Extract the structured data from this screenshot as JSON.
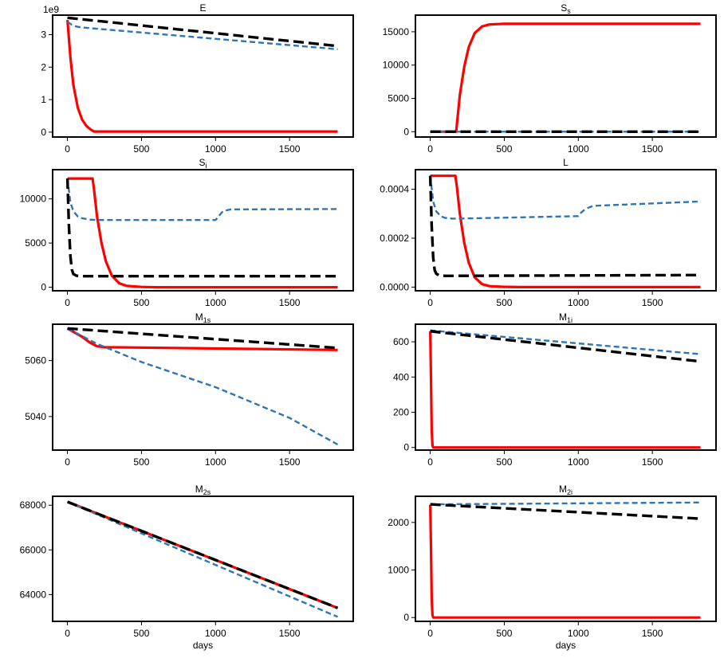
{
  "figure": {
    "xlabel": "days"
  },
  "colors": {
    "red": "#ff0000",
    "blue": "#2e75b6",
    "black": "#000000"
  },
  "chart_data": [
    {
      "type": "line",
      "title": "E",
      "title_main": "E",
      "title_sub": "",
      "offset_label": "1e9",
      "xlim": [
        -100,
        1930
      ],
      "ylim": [
        -0.15,
        3.6
      ],
      "xticks": [
        0,
        500,
        1000,
        1500
      ],
      "yticks": [
        0,
        1,
        2,
        3
      ],
      "ytick_labels": [
        "0",
        "1",
        "2",
        "3"
      ],
      "xlabel": "",
      "series": [
        {
          "name": "red-solid",
          "color": "#ff0000",
          "style": "solid",
          "x": [
            0,
            20,
            40,
            70,
            100,
            130,
            160,
            180,
            1825
          ],
          "y": [
            3.45,
            2.3,
            1.45,
            0.75,
            0.38,
            0.18,
            0.07,
            0.02,
            0.02
          ]
        },
        {
          "name": "blue-dashed",
          "color": "#2e75b6",
          "style": "dashed",
          "x": [
            0,
            30,
            60,
            100,
            1825
          ],
          "y": [
            3.4,
            3.3,
            3.25,
            3.22,
            2.55
          ]
        },
        {
          "name": "black-dashed",
          "color": "#000000",
          "style": "longdash",
          "x": [
            0,
            1825
          ],
          "y": [
            3.52,
            2.65
          ]
        }
      ]
    },
    {
      "type": "line",
      "title": "Ss",
      "title_main": "S",
      "title_sub": "s",
      "offset_label": "",
      "xlim": [
        -100,
        1930
      ],
      "ylim": [
        -800,
        17500
      ],
      "xticks": [
        0,
        500,
        1000,
        1500
      ],
      "yticks": [
        0,
        5000,
        10000,
        15000
      ],
      "ytick_labels": [
        "0",
        "5000",
        "10000",
        "15000"
      ],
      "xlabel": "",
      "series": [
        {
          "name": "red-solid",
          "color": "#ff0000",
          "style": "solid",
          "x": [
            0,
            170,
            175,
            200,
            230,
            260,
            300,
            350,
            400,
            500,
            1825
          ],
          "y": [
            0,
            0,
            0,
            5500,
            9800,
            12700,
            14800,
            15800,
            16100,
            16200,
            16200
          ]
        },
        {
          "name": "blue-dashed",
          "color": "#2e75b6",
          "style": "dashed",
          "x": [
            0,
            1825
          ],
          "y": [
            0,
            0
          ]
        },
        {
          "name": "black-dashed",
          "color": "#000000",
          "style": "longdash",
          "x": [
            0,
            1825
          ],
          "y": [
            0,
            0
          ]
        }
      ]
    },
    {
      "type": "line",
      "title": "Si",
      "title_main": "S",
      "title_sub": "i",
      "offset_label": "",
      "xlim": [
        -100,
        1930
      ],
      "ylim": [
        -400,
        13300
      ],
      "xticks": [
        0,
        500,
        1000,
        1500
      ],
      "yticks": [
        0,
        5000,
        10000
      ],
      "ytick_labels": [
        "0",
        "5000",
        "10000"
      ],
      "xlabel": "",
      "series": [
        {
          "name": "red-solid",
          "color": "#ff0000",
          "style": "solid",
          "x": [
            0,
            170,
            180,
            200,
            230,
            260,
            300,
            350,
            400,
            500,
            600,
            1825
          ],
          "y": [
            12300,
            12300,
            11000,
            8000,
            5000,
            2900,
            1300,
            450,
            150,
            30,
            0,
            0
          ]
        },
        {
          "name": "blue-dashed",
          "color": "#2e75b6",
          "style": "dashed",
          "x": [
            0,
            20,
            40,
            70,
            100,
            150,
            200,
            1000,
            1020,
            1050,
            1100,
            1825
          ],
          "y": [
            12300,
            9600,
            8600,
            8000,
            7800,
            7650,
            7600,
            7600,
            8000,
            8600,
            8800,
            8850
          ]
        },
        {
          "name": "black-dashed",
          "color": "#000000",
          "style": "longdash",
          "x": [
            0,
            10,
            20,
            30,
            40,
            60,
            100,
            1825
          ],
          "y": [
            12300,
            7000,
            3500,
            2000,
            1500,
            1300,
            1250,
            1250
          ]
        }
      ]
    },
    {
      "type": "line",
      "title": "L",
      "title_main": "L",
      "title_sub": "",
      "offset_label": "",
      "xlim": [
        -100,
        1930
      ],
      "ylim": [
        -1.5e-05,
        0.00048
      ],
      "xticks": [
        0,
        500,
        1000,
        1500
      ],
      "yticks": [
        0,
        0.0002,
        0.0004
      ],
      "ytick_labels": [
        "0.0000",
        "0.0002",
        "0.0004"
      ],
      "xlabel": "",
      "series": [
        {
          "name": "red-solid",
          "color": "#ff0000",
          "style": "solid",
          "x": [
            0,
            170,
            180,
            200,
            230,
            260,
            300,
            350,
            400,
            500,
            600,
            1825
          ],
          "y": [
            0.000455,
            0.000455,
            0.00041,
            0.0003,
            0.00018,
            0.0001,
            4e-05,
            1.2e-05,
            4e-06,
            1e-06,
            0,
            0
          ]
        },
        {
          "name": "blue-dashed",
          "color": "#2e75b6",
          "style": "dashed",
          "x": [
            0,
            20,
            40,
            70,
            100,
            150,
            200,
            1000,
            1020,
            1050,
            1100,
            1825
          ],
          "y": [
            0.000455,
            0.00035,
            0.00031,
            0.00029,
            0.000283,
            0.00028,
            0.00028,
            0.00029,
            0.000305,
            0.00032,
            0.000332,
            0.00035
          ]
        },
        {
          "name": "black-dashed",
          "color": "#000000",
          "style": "longdash",
          "x": [
            0,
            10,
            20,
            30,
            40,
            60,
            100,
            1825
          ],
          "y": [
            0.000455,
            0.00025,
            0.00012,
            7e-05,
            5.5e-05,
            4.8e-05,
            4.6e-05,
            4.9e-05
          ]
        }
      ]
    },
    {
      "type": "line",
      "title": "M1s",
      "title_main": "M",
      "title_sub": "1s",
      "offset_label": "",
      "xlim": [
        -100,
        1930
      ],
      "ylim": [
        5028,
        5073
      ],
      "xticks": [
        0,
        500,
        1000,
        1500
      ],
      "yticks": [
        5040,
        5060
      ],
      "ytick_labels": [
        "5040",
        "5060"
      ],
      "xlabel": "",
      "series": [
        {
          "name": "red-solid",
          "color": "#ff0000",
          "style": "solid",
          "x": [
            0,
            100,
            150,
            200,
            250,
            1825
          ],
          "y": [
            5071.5,
            5068.5,
            5066.5,
            5065.1,
            5064.8,
            5063.8
          ]
        },
        {
          "name": "blue-dashed",
          "color": "#2e75b6",
          "style": "dashed",
          "x": [
            0,
            200,
            500,
            1000,
            1500,
            1825
          ],
          "y": [
            5071.5,
            5066,
            5059.5,
            5050.5,
            5039.5,
            5030
          ]
        },
        {
          "name": "black-dashed",
          "color": "#000000",
          "style": "longdash",
          "x": [
            0,
            1825
          ],
          "y": [
            5071.5,
            5064.5
          ]
        }
      ]
    },
    {
      "type": "line",
      "title": "M1i",
      "title_main": "M",
      "title_sub": "1i",
      "offset_label": "",
      "xlim": [
        -100,
        1930
      ],
      "ylim": [
        -15,
        700
      ],
      "xticks": [
        0,
        500,
        1000,
        1500
      ],
      "yticks": [
        0,
        200,
        400,
        600
      ],
      "ytick_labels": [
        "0",
        "200",
        "400",
        "600"
      ],
      "xlabel": "",
      "series": [
        {
          "name": "red-solid",
          "color": "#ff0000",
          "style": "solid",
          "x": [
            0,
            5,
            10,
            15,
            20,
            1825
          ],
          "y": [
            660,
            400,
            100,
            10,
            0,
            0
          ]
        },
        {
          "name": "blue-dashed",
          "color": "#2e75b6",
          "style": "dashed",
          "x": [
            0,
            1825
          ],
          "y": [
            665,
            530
          ]
        },
        {
          "name": "black-dashed",
          "color": "#000000",
          "style": "longdash",
          "x": [
            0,
            1825
          ],
          "y": [
            660,
            488
          ]
        }
      ]
    },
    {
      "type": "line",
      "title": "M2s",
      "title_main": "M",
      "title_sub": "2s",
      "offset_label": "",
      "xlim": [
        -100,
        1930
      ],
      "ylim": [
        62800,
        68400
      ],
      "xticks": [
        0,
        500,
        1000,
        1500
      ],
      "yticks": [
        64000,
        66000,
        68000
      ],
      "ytick_labels": [
        "64000",
        "66000",
        "68000"
      ],
      "xlabel": "days",
      "series": [
        {
          "name": "red-solid",
          "color": "#ff0000",
          "style": "solid",
          "x": [
            0,
            1825
          ],
          "y": [
            68150,
            63400
          ]
        },
        {
          "name": "blue-dashed",
          "color": "#2e75b6",
          "style": "dashed",
          "x": [
            0,
            1825
          ],
          "y": [
            68150,
            63000
          ]
        },
        {
          "name": "black-dashed",
          "color": "#000000",
          "style": "longdash",
          "x": [
            0,
            1825
          ],
          "y": [
            68150,
            63400
          ]
        }
      ]
    },
    {
      "type": "line",
      "title": "M2i",
      "title_main": "M",
      "title_sub": "2i",
      "offset_label": "",
      "xlim": [
        -100,
        1930
      ],
      "ylim": [
        -80,
        2550
      ],
      "xticks": [
        0,
        500,
        1000,
        1500
      ],
      "yticks": [
        0,
        1000,
        2000
      ],
      "ytick_labels": [
        "0",
        "1000",
        "2000"
      ],
      "xlabel": "days",
      "series": [
        {
          "name": "red-solid",
          "color": "#ff0000",
          "style": "solid",
          "x": [
            0,
            5,
            10,
            15,
            20,
            1825
          ],
          "y": [
            2370,
            1500,
            400,
            50,
            0,
            0
          ]
        },
        {
          "name": "blue-dashed",
          "color": "#2e75b6",
          "style": "dashed",
          "x": [
            0,
            1825
          ],
          "y": [
            2380,
            2420
          ]
        },
        {
          "name": "black-dashed",
          "color": "#000000",
          "style": "longdash",
          "x": [
            0,
            1825
          ],
          "y": [
            2380,
            2080
          ]
        }
      ]
    }
  ]
}
